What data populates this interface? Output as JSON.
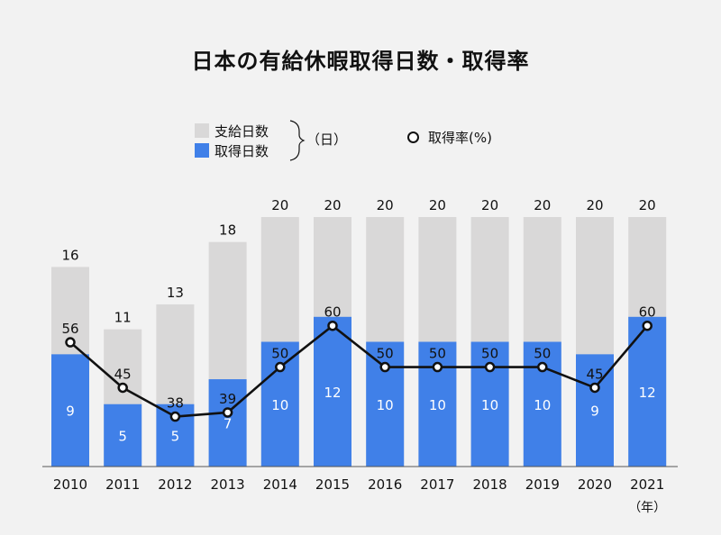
{
  "title": "日本の有給休暇取得日数・取得率",
  "legend": {
    "granted": "支給日数",
    "taken": "取得日数",
    "days_unit": "（日）",
    "rate": "取得率(%)"
  },
  "x_unit": "（年）",
  "colors": {
    "granted": "#d9d8d8",
    "taken": "#4080e8",
    "line": "#111111",
    "background": "#f2f2f2"
  },
  "chart_data": {
    "type": "bar",
    "title": "日本の有給休暇取得日数・取得率",
    "categories": [
      "2010",
      "2011",
      "2012",
      "2013",
      "2014",
      "2015",
      "2016",
      "2017",
      "2018",
      "2019",
      "2020",
      "2021"
    ],
    "series": [
      {
        "name": "支給日数",
        "values": [
          16,
          11,
          13,
          18,
          20,
          20,
          20,
          20,
          20,
          20,
          20,
          20
        ]
      },
      {
        "name": "取得日数",
        "values": [
          9,
          5,
          5,
          7,
          10,
          12,
          10,
          10,
          10,
          10,
          9,
          12
        ]
      },
      {
        "name": "取得率(%)",
        "type": "line",
        "values": [
          56,
          45,
          38,
          39,
          50,
          60,
          50,
          50,
          50,
          50,
          45,
          60
        ]
      }
    ],
    "ylim": [
      0,
      20
    ],
    "grid": false,
    "legend_position": "top"
  }
}
